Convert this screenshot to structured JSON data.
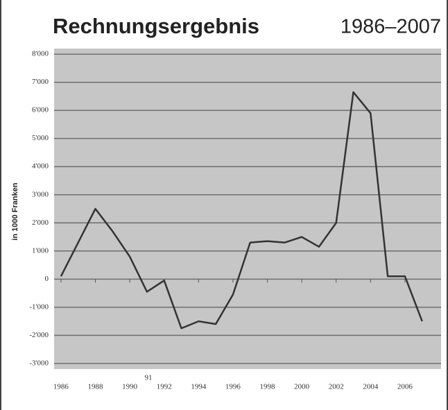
{
  "chart_data": {
    "type": "line",
    "title": "Rechnungsergebnis",
    "subtitle": "1986–2007",
    "y_label": "in 1000 Franken",
    "annotation": "91",
    "x": [
      1986,
      1987,
      1988,
      1989,
      1990,
      1991,
      1992,
      1993,
      1994,
      1995,
      1996,
      1997,
      1998,
      1999,
      2000,
      2001,
      2002,
      2003,
      2004,
      2005,
      2006,
      2007
    ],
    "values": [
      100,
      1300,
      2500,
      1700,
      800,
      -450,
      -50,
      -1750,
      -1500,
      -1600,
      -550,
      1300,
      1350,
      1300,
      1500,
      1150,
      2000,
      6650,
      5900,
      100,
      100,
      -1500
    ],
    "color": "#333333",
    "xlim": [
      1985.6,
      2008.1
    ],
    "xticks": [
      1986,
      1988,
      1990,
      1992,
      1994,
      1996,
      1998,
      2000,
      2002,
      2004,
      2006
    ],
    "ylim": [
      -3200,
      8200
    ],
    "yticks": [
      {
        "value": -3000,
        "label": "-3'000"
      },
      {
        "value": -2000,
        "label": "-2'000"
      },
      {
        "value": -1000,
        "label": "-1'000"
      },
      0,
      {
        "value": 1000,
        "label": "1'000"
      },
      {
        "value": 2000,
        "label": "2'000"
      },
      {
        "value": 3000,
        "label": "3'000"
      },
      {
        "value": 4000,
        "label": "4'000"
      },
      {
        "value": 5000,
        "label": "5'000"
      },
      {
        "value": 6000,
        "label": "6'000"
      },
      {
        "value": 7000,
        "label": "7'000"
      },
      {
        "value": 8000,
        "label": "8'000"
      }
    ],
    "grid": true
  }
}
